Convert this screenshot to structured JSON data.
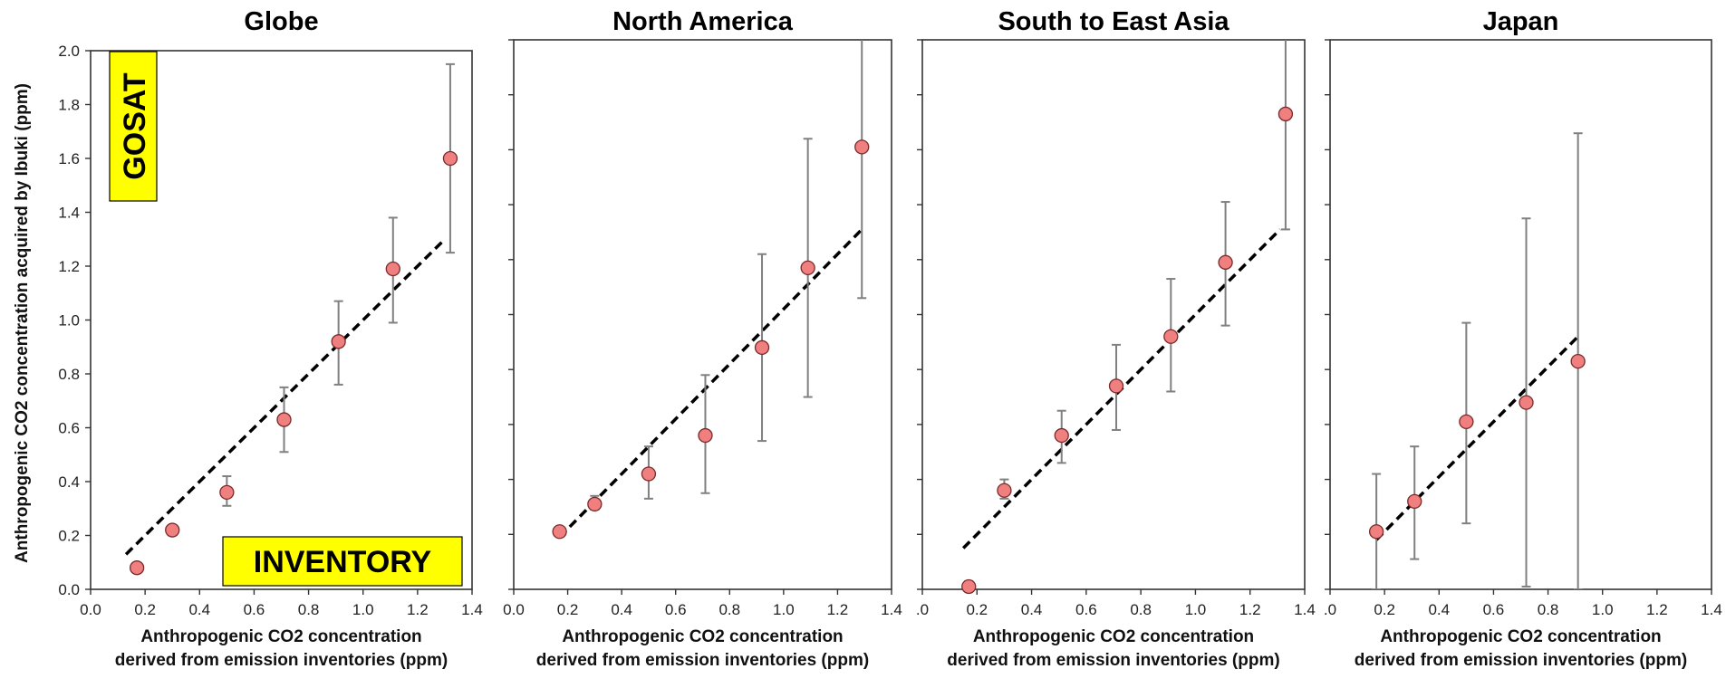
{
  "figure": {
    "ylabel": "Anthropogenic CO2 concentration acquired by Ibuki (ppm)",
    "badges": {
      "gosat": "GOSAT",
      "inventory": "INVENTORY"
    }
  },
  "colors": {
    "marker_fill": "#f08080",
    "marker_stroke": "#7a2a2a",
    "errorbar": "#808080",
    "fit_line": "#000000",
    "badge_bg": "#ffff00",
    "axis": "#333333"
  },
  "chart_data": [
    {
      "type": "scatter",
      "title": "Globe",
      "xlabel": [
        "Anthropogenic CO2 concentration",
        "derived from emission inventories (ppm)"
      ],
      "xlim": [
        0.0,
        1.4
      ],
      "ylim": [
        0.0,
        2.0
      ],
      "xticks": [
        "0.0",
        "0.2",
        "0.4",
        "0.6",
        "0.8",
        "1.0",
        "1.2",
        "1.4"
      ],
      "yticks": [
        "0.0",
        "0.2",
        "0.4",
        "0.6",
        "0.8",
        "1.0",
        "1.2",
        "1.4",
        "1.6",
        "1.8",
        "2.0"
      ],
      "show_y_tick_labels": true,
      "points": [
        {
          "x": 0.17,
          "y": 0.08,
          "err_low": null,
          "err_high": null
        },
        {
          "x": 0.3,
          "y": 0.22,
          "err_low": null,
          "err_high": null
        },
        {
          "x": 0.5,
          "y": 0.36,
          "err_low": 0.31,
          "err_high": 0.42
        },
        {
          "x": 0.71,
          "y": 0.63,
          "err_low": 0.51,
          "err_high": 0.75
        },
        {
          "x": 0.91,
          "y": 0.92,
          "err_low": 0.76,
          "err_high": 1.07
        },
        {
          "x": 1.11,
          "y": 1.19,
          "err_low": 0.99,
          "err_high": 1.38
        },
        {
          "x": 1.32,
          "y": 1.6,
          "err_low": 1.25,
          "err_high": 1.95
        }
      ],
      "fit_line": [
        [
          0.13,
          0.13
        ],
        [
          1.3,
          1.3
        ]
      ]
    },
    {
      "type": "scatter",
      "title": "North America",
      "xlabel": [
        "Anthropogenic CO2 concentration",
        "derived from emission inventories (ppm)"
      ],
      "xlim": [
        0.0,
        1.4
      ],
      "ylim": [
        0.0,
        2.0
      ],
      "xticks": [
        "0.0",
        "0.2",
        "0.4",
        "0.6",
        "0.8",
        "1.0",
        "1.2",
        "1.4"
      ],
      "yticks": [],
      "show_y_tick_labels": false,
      "points": [
        {
          "x": 0.17,
          "y": 0.21,
          "err_low": null,
          "err_high": null
        },
        {
          "x": 0.3,
          "y": 0.31,
          "err_low": 0.29,
          "err_high": 0.34
        },
        {
          "x": 0.5,
          "y": 0.42,
          "err_low": 0.33,
          "err_high": 0.52
        },
        {
          "x": 0.71,
          "y": 0.56,
          "err_low": 0.35,
          "err_high": 0.78
        },
        {
          "x": 0.92,
          "y": 0.88,
          "err_low": 0.54,
          "err_high": 1.22
        },
        {
          "x": 1.09,
          "y": 1.17,
          "err_low": 0.7,
          "err_high": 1.64
        },
        {
          "x": 1.29,
          "y": 1.61,
          "err_low": 1.06,
          "err_high": 2.05
        }
      ],
      "fit_line": [
        [
          0.17,
          0.19
        ],
        [
          1.29,
          1.31
        ]
      ]
    },
    {
      "type": "scatter",
      "title": "South to East Asia",
      "xlabel": [
        "Anthropogenic CO2 concentration",
        "derived from emission inventories (ppm)"
      ],
      "xlim": [
        0.0,
        1.4
      ],
      "ylim": [
        0.0,
        2.0
      ],
      "xticks": [
        ".0",
        "0.2",
        "0.4",
        "0.6",
        "0.8",
        "1.0",
        "1.2",
        "1.4"
      ],
      "yticks": [],
      "show_y_tick_labels": false,
      "points": [
        {
          "x": 0.17,
          "y": 0.01,
          "err_low": 0.0,
          "err_high": 0.03
        },
        {
          "x": 0.3,
          "y": 0.36,
          "err_low": 0.33,
          "err_high": 0.4
        },
        {
          "x": 0.51,
          "y": 0.56,
          "err_low": 0.46,
          "err_high": 0.65
        },
        {
          "x": 0.71,
          "y": 0.74,
          "err_low": 0.58,
          "err_high": 0.89
        },
        {
          "x": 0.91,
          "y": 0.92,
          "err_low": 0.72,
          "err_high": 1.13
        },
        {
          "x": 1.11,
          "y": 1.19,
          "err_low": 0.96,
          "err_high": 1.41
        },
        {
          "x": 1.33,
          "y": 1.73,
          "err_low": 1.31,
          "err_high": 2.05
        }
      ],
      "fit_line": [
        [
          0.15,
          0.15
        ],
        [
          1.31,
          1.31
        ]
      ]
    },
    {
      "type": "scatter",
      "title": "Japan",
      "xlabel": [
        "Anthropogenic CO2 concentration",
        "derived from emission inventories (ppm)"
      ],
      "xlim": [
        0.0,
        1.4
      ],
      "ylim": [
        0.0,
        2.0
      ],
      "xticks": [
        ".0",
        "0.2",
        "0.4",
        "0.6",
        "0.8",
        "1.0",
        "1.2",
        "1.4"
      ],
      "yticks": [],
      "show_y_tick_labels": false,
      "points": [
        {
          "x": 0.17,
          "y": 0.21,
          "err_low": 0.0,
          "err_high": 0.42
        },
        {
          "x": 0.31,
          "y": 0.32,
          "err_low": 0.11,
          "err_high": 0.52
        },
        {
          "x": 0.5,
          "y": 0.61,
          "err_low": 0.24,
          "err_high": 0.97
        },
        {
          "x": 0.72,
          "y": 0.68,
          "err_low": 0.01,
          "err_high": 1.35
        },
        {
          "x": 0.91,
          "y": 0.83,
          "err_low": 0.0,
          "err_high": 1.66
        }
      ],
      "fit_line": [
        [
          0.17,
          0.18
        ],
        [
          0.91,
          0.92
        ]
      ]
    }
  ]
}
